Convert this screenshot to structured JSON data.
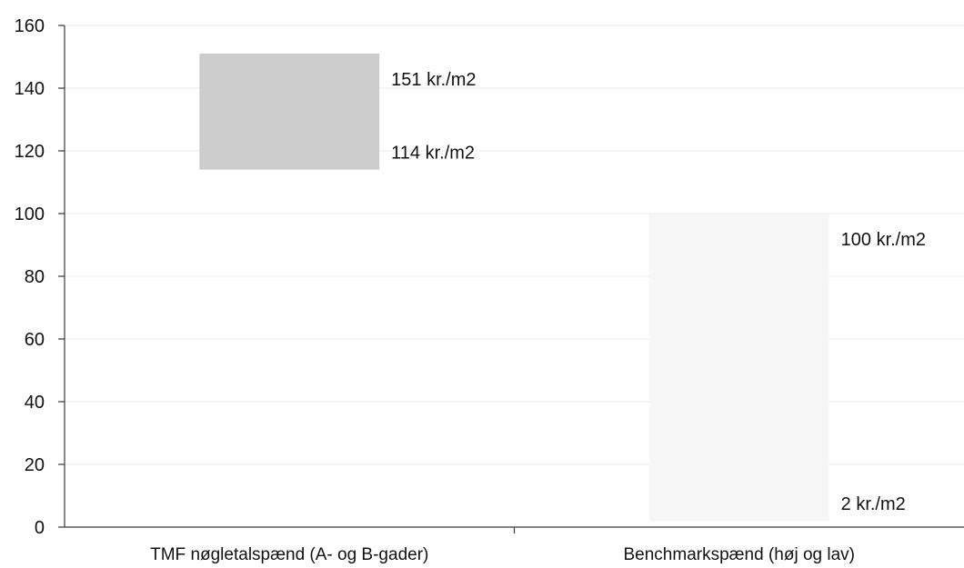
{
  "chart_data": {
    "type": "bar",
    "subtype": "floating-range",
    "categories": [
      "TMF nøgletalspænd (A- og B-gader)",
      "Benchmarkspænd (høj og lav)"
    ],
    "ranges": [
      {
        "low": 114,
        "high": 151,
        "low_label": "114 kr./m2",
        "high_label": "151 kr./m2",
        "color": "#cccccc"
      },
      {
        "low": 2,
        "high": 100,
        "low_label": "2 kr./m2",
        "high_label": "100 kr./m2",
        "color": "#f6f6f6"
      }
    ],
    "yticks": [
      "0",
      "20",
      "40",
      "60",
      "80",
      "100",
      "120",
      "140",
      "160"
    ],
    "ylim": [
      0,
      160
    ],
    "grid": true,
    "legend": "none"
  }
}
